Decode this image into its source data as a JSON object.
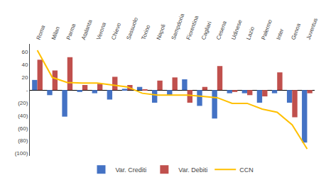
{
  "chart_data": {
    "type": "bar",
    "categories": [
      "Roma",
      "Milan",
      "Parma",
      "Atalanta",
      "Verona",
      "Chievo",
      "Sassuolo",
      "Torino",
      "Napoli",
      "Sampdoria",
      "Fiorentina",
      "Cagliari",
      "Cesena",
      "Udinese",
      "Lazio",
      "Palermo",
      "Inter",
      "Genoa",
      "Juventus"
    ],
    "series": [
      {
        "name": "Var. Crediti",
        "type": "bar",
        "color": "#4472c4",
        "values": [
          16,
          -8,
          -42,
          -3,
          -5,
          -15,
          2,
          5,
          -20,
          -8,
          17,
          -25,
          -45,
          -5,
          -5,
          -20,
          -5,
          -20,
          -83
        ]
      },
      {
        "name": "Var. Debiti",
        "type": "bar",
        "color": "#c0504d",
        "values": [
          48,
          31,
          52,
          8,
          10,
          21,
          8,
          1,
          15,
          20,
          -20,
          5,
          38,
          -3,
          -8,
          -10,
          28,
          -43,
          -5
        ]
      },
      {
        "name": "CCN",
        "type": "line",
        "color": "#ffc000",
        "values": [
          63,
          20,
          12,
          11,
          11,
          8,
          5,
          -5,
          -8,
          -8,
          -8,
          -10,
          -12,
          -21,
          -21,
          -30,
          -35,
          -55,
          -93
        ]
      }
    ],
    "ylim": [
      -104,
      73
    ],
    "yticks": [
      60,
      40,
      20,
      {
        "value": 0,
        "label": "-"
      },
      {
        "value": -20,
        "label": "(20)"
      },
      {
        "value": -40,
        "label": "(40)"
      },
      {
        "value": -60,
        "label": "(60)"
      },
      {
        "value": -80,
        "label": "(80)"
      },
      {
        "value": -100,
        "label": "(100)"
      }
    ],
    "grid": false,
    "legend": "bottom"
  }
}
